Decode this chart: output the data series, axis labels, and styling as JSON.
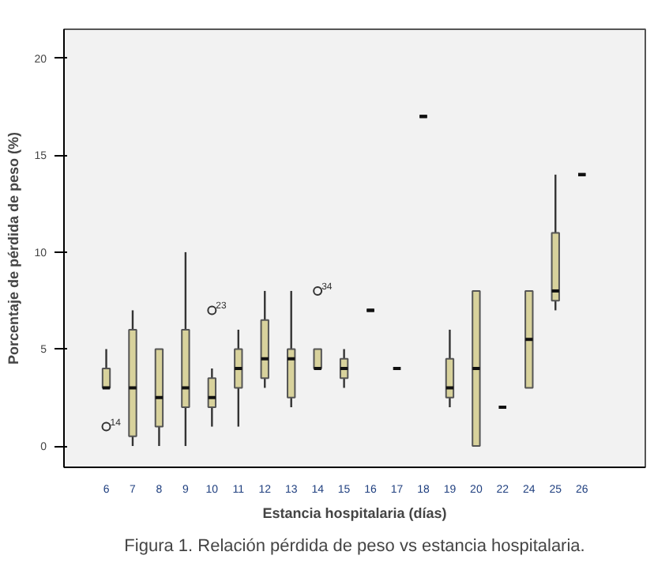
{
  "chart_data": {
    "type": "box",
    "xlabel": "Estancia hospitalaria (días)",
    "ylabel": "Porcentaje de pérdida de peso (%)",
    "categories": [
      "6",
      "7",
      "8",
      "9",
      "10",
      "11",
      "12",
      "13",
      "14",
      "15",
      "16",
      "17",
      "18",
      "19",
      "20",
      "22",
      "24",
      "25",
      "26"
    ],
    "colors": [
      "#d8d29c",
      "#d8d29c",
      "#d8d29c",
      "#d8d29c",
      "#d8d29c",
      "#d8d29c",
      "#d8d29c",
      "#d8d29c",
      "#d8d29c",
      "#d8d29c",
      "#111111",
      "#111111",
      "#111111",
      "#d8d29c",
      "#d8d29c",
      "#111111",
      "#d8d29c",
      "#d8d29c",
      "#111111"
    ],
    "boxes": [
      {
        "low": 3,
        "q1": 3,
        "median": 3,
        "q3": 4,
        "high": 5
      },
      {
        "low": 0,
        "q1": 0.5,
        "median": 3,
        "q3": 6,
        "high": 7
      },
      {
        "low": 0,
        "q1": 1,
        "median": 2.5,
        "q3": 5,
        "high": 5
      },
      {
        "low": 0,
        "q1": 2,
        "median": 3,
        "q3": 6,
        "high": 10
      },
      {
        "low": 1,
        "q1": 2,
        "median": 2.5,
        "q3": 3.5,
        "high": 4
      },
      {
        "low": 1,
        "q1": 3,
        "median": 4,
        "q3": 5,
        "high": 6
      },
      {
        "low": 3,
        "q1": 3.5,
        "median": 4.5,
        "q3": 6.5,
        "high": 8
      },
      {
        "low": 2,
        "q1": 2.5,
        "median": 4.5,
        "q3": 5,
        "high": 8
      },
      {
        "low": 4,
        "q1": 4,
        "median": 4,
        "q3": 5,
        "high": 5
      },
      {
        "low": 3,
        "q1": 3.5,
        "median": 4,
        "q3": 4.5,
        "high": 5
      },
      {
        "low": 7,
        "q1": 7,
        "median": 7,
        "q3": 7,
        "high": 7
      },
      {
        "low": 4,
        "q1": 4,
        "median": 4,
        "q3": 4,
        "high": 4
      },
      {
        "low": 17,
        "q1": 17,
        "median": 17,
        "q3": 17,
        "high": 17
      },
      {
        "low": 2,
        "q1": 2.5,
        "median": 3,
        "q3": 4.5,
        "high": 6
      },
      {
        "low": 0,
        "q1": 0,
        "median": 4,
        "q3": 8,
        "high": 8
      },
      {
        "low": 2,
        "q1": 2,
        "median": 2,
        "q3": 2,
        "high": 2
      },
      {
        "low": 3,
        "q1": 3,
        "median": 5.5,
        "q3": 8,
        "high": 8
      },
      {
        "low": 7,
        "q1": 7.5,
        "median": 8,
        "q3": 11,
        "high": 14
      },
      {
        "low": 14,
        "q1": 14,
        "median": 14,
        "q3": 14,
        "high": 14
      }
    ],
    "series": [
      {
        "type": "scatter",
        "marker": "circle",
        "color": "#333333",
        "x": [
          "6",
          "10",
          "14"
        ],
        "values": [
          1,
          7,
          8
        ]
      }
    ],
    "ylim": [
      -1.1,
      21.5
    ],
    "yticks": [
      0,
      5,
      10,
      15,
      20
    ],
    "grid": false,
    "annotations": [
      {
        "text": "14",
        "x": "6",
        "y": 1
      },
      {
        "text": "23",
        "x": "10",
        "y": 7
      },
      {
        "text": "34",
        "x": "14",
        "y": 8
      },
      "Figura 1. Relación pérdida de peso vs estancia hospitalaria."
    ]
  }
}
